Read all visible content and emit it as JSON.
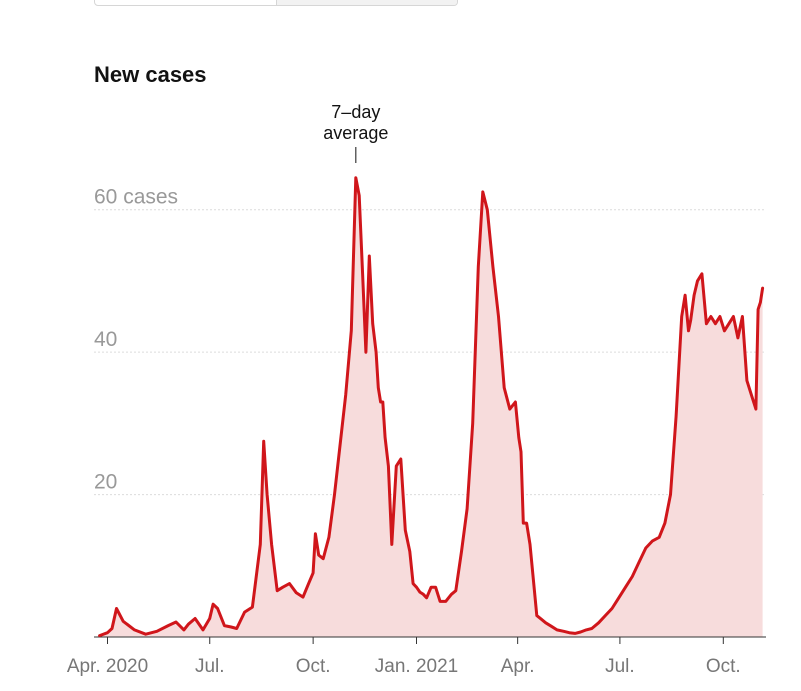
{
  "colors": {
    "line": "#d0161b",
    "area": "#f7dcdc",
    "grid": "#dcdcdc",
    "baseline": "#333333"
  },
  "chart_data": {
    "type": "area",
    "title": "New cases",
    "series": [
      {
        "x": [
          "2020-03-25",
          "2020-04-01",
          "2020-04-05",
          "2020-04-09",
          "2020-04-15",
          "2020-04-25",
          "2020-05-05",
          "2020-05-15",
          "2020-05-25",
          "2020-06-01",
          "2020-06-08",
          "2020-06-12",
          "2020-06-18",
          "2020-06-25",
          "2020-07-01",
          "2020-07-04",
          "2020-07-08",
          "2020-07-14",
          "2020-07-20",
          "2020-07-25",
          "2020-08-01",
          "2020-08-08",
          "2020-08-15",
          "2020-08-18",
          "2020-08-21",
          "2020-08-25",
          "2020-08-30",
          "2020-09-04",
          "2020-09-10",
          "2020-09-16",
          "2020-09-22",
          "2020-09-27",
          "2020-10-01",
          "2020-10-03",
          "2020-10-06",
          "2020-10-10",
          "2020-10-15",
          "2020-10-20",
          "2020-10-25",
          "2020-10-30",
          "2020-11-04",
          "2020-11-08",
          "2020-11-11",
          "2020-11-14",
          "2020-11-17",
          "2020-11-20",
          "2020-11-23",
          "2020-11-26",
          "2020-11-28",
          "2020-11-30",
          "2020-12-02",
          "2020-12-04",
          "2020-12-07",
          "2020-12-10",
          "2020-12-14",
          "2020-12-18",
          "2020-12-22",
          "2020-12-26",
          "2020-12-29",
          "2021-01-01",
          "2021-01-04",
          "2021-01-07",
          "2021-01-10",
          "2021-01-14",
          "2021-01-18",
          "2021-01-22",
          "2021-01-27",
          "2021-02-01",
          "2021-02-05",
          "2021-02-10",
          "2021-02-15",
          "2021-02-20",
          "2021-02-25",
          "2021-03-01",
          "2021-03-05",
          "2021-03-10",
          "2021-03-15",
          "2021-03-20",
          "2021-03-25",
          "2021-03-30",
          "2021-04-02",
          "2021-04-04",
          "2021-04-06",
          "2021-04-09",
          "2021-04-12",
          "2021-04-15",
          "2021-04-18",
          "2021-04-22",
          "2021-04-26",
          "2021-05-01",
          "2021-05-06",
          "2021-05-12",
          "2021-05-17",
          "2021-05-22",
          "2021-05-27",
          "2021-06-01",
          "2021-06-06",
          "2021-06-12",
          "2021-06-18",
          "2021-06-24",
          "2021-06-30",
          "2021-07-06",
          "2021-07-12",
          "2021-07-18",
          "2021-07-24",
          "2021-07-30",
          "2021-08-05",
          "2021-08-10",
          "2021-08-15",
          "2021-08-20",
          "2021-08-25",
          "2021-08-28",
          "2021-08-31",
          "2021-09-02",
          "2021-09-05",
          "2021-09-08",
          "2021-09-12",
          "2021-09-16",
          "2021-09-20",
          "2021-09-24",
          "2021-09-28",
          "2021-10-02",
          "2021-10-06",
          "2021-10-10",
          "2021-10-14",
          "2021-10-18",
          "2021-10-22",
          "2021-10-26",
          "2021-10-30",
          "2021-11-01",
          "2021-11-03",
          "2021-11-05"
        ],
        "values": [
          0.2,
          0.6,
          1.2,
          4.0,
          2.2,
          1.0,
          0.4,
          0.8,
          1.6,
          2.1,
          1.0,
          1.8,
          2.6,
          1.0,
          2.6,
          4.6,
          4.0,
          1.6,
          1.4,
          1.2,
          3.5,
          4.2,
          13.0,
          27.5,
          20.0,
          13.0,
          6.5,
          7.0,
          7.5,
          6.2,
          5.6,
          7.5,
          9.0,
          14.5,
          11.5,
          11.0,
          14.0,
          20.0,
          27.0,
          34.0,
          43.0,
          64.5,
          62.0,
          51.0,
          40.0,
          53.5,
          44.0,
          40.0,
          35.0,
          33.0,
          33.0,
          28.0,
          24.0,
          13.0,
          24.0,
          25.0,
          15.0,
          12.0,
          7.5,
          7.0,
          6.3,
          6.0,
          5.5,
          7.0,
          7.0,
          5.0,
          5.0,
          6.0,
          6.5,
          12.0,
          18.0,
          30.0,
          52.0,
          62.5,
          60.0,
          52.0,
          45.0,
          35.0,
          32.0,
          33.0,
          28.0,
          26.0,
          16.0,
          16.0,
          13.0,
          8.0,
          3.0,
          2.5,
          2.0,
          1.5,
          1.0,
          0.8,
          0.6,
          0.5,
          0.7,
          1.0,
          1.2,
          2.0,
          3.0,
          4.0,
          5.5,
          7.0,
          8.5,
          10.5,
          12.5,
          13.5,
          14.0,
          16.0,
          20.0,
          31.0,
          45.0,
          48.0,
          43.0,
          44.5,
          48.0,
          50.0,
          51.0,
          44.0,
          45.0,
          44.0,
          45.0,
          43.0,
          44.0,
          45.0,
          42.0,
          45.0,
          36.0,
          34.0,
          32.0,
          46.0,
          47.0,
          49.0
        ]
      }
    ],
    "y_ticks": [
      {
        "value": 60,
        "label": "60 cases"
      },
      {
        "value": 40,
        "label": "40"
      },
      {
        "value": 20,
        "label": "20"
      }
    ],
    "ylim": [
      0,
      66
    ],
    "x_ticks": [
      {
        "date": "2020-04-01",
        "label": "Apr. 2020"
      },
      {
        "date": "2020-07-01",
        "label": "Jul."
      },
      {
        "date": "2020-10-01",
        "label": "Oct."
      },
      {
        "date": "2021-01-01",
        "label": "Jan. 2021"
      },
      {
        "date": "2021-04-01",
        "label": "Apr."
      },
      {
        "date": "2021-07-01",
        "label": "Jul."
      },
      {
        "date": "2021-10-01",
        "label": "Oct."
      }
    ],
    "xlim": [
      "2020-03-20",
      "2021-11-08"
    ],
    "annotation": {
      "lines": [
        "7–day",
        "average"
      ],
      "date": "2020-11-08"
    },
    "grid": true,
    "legend": "none"
  }
}
